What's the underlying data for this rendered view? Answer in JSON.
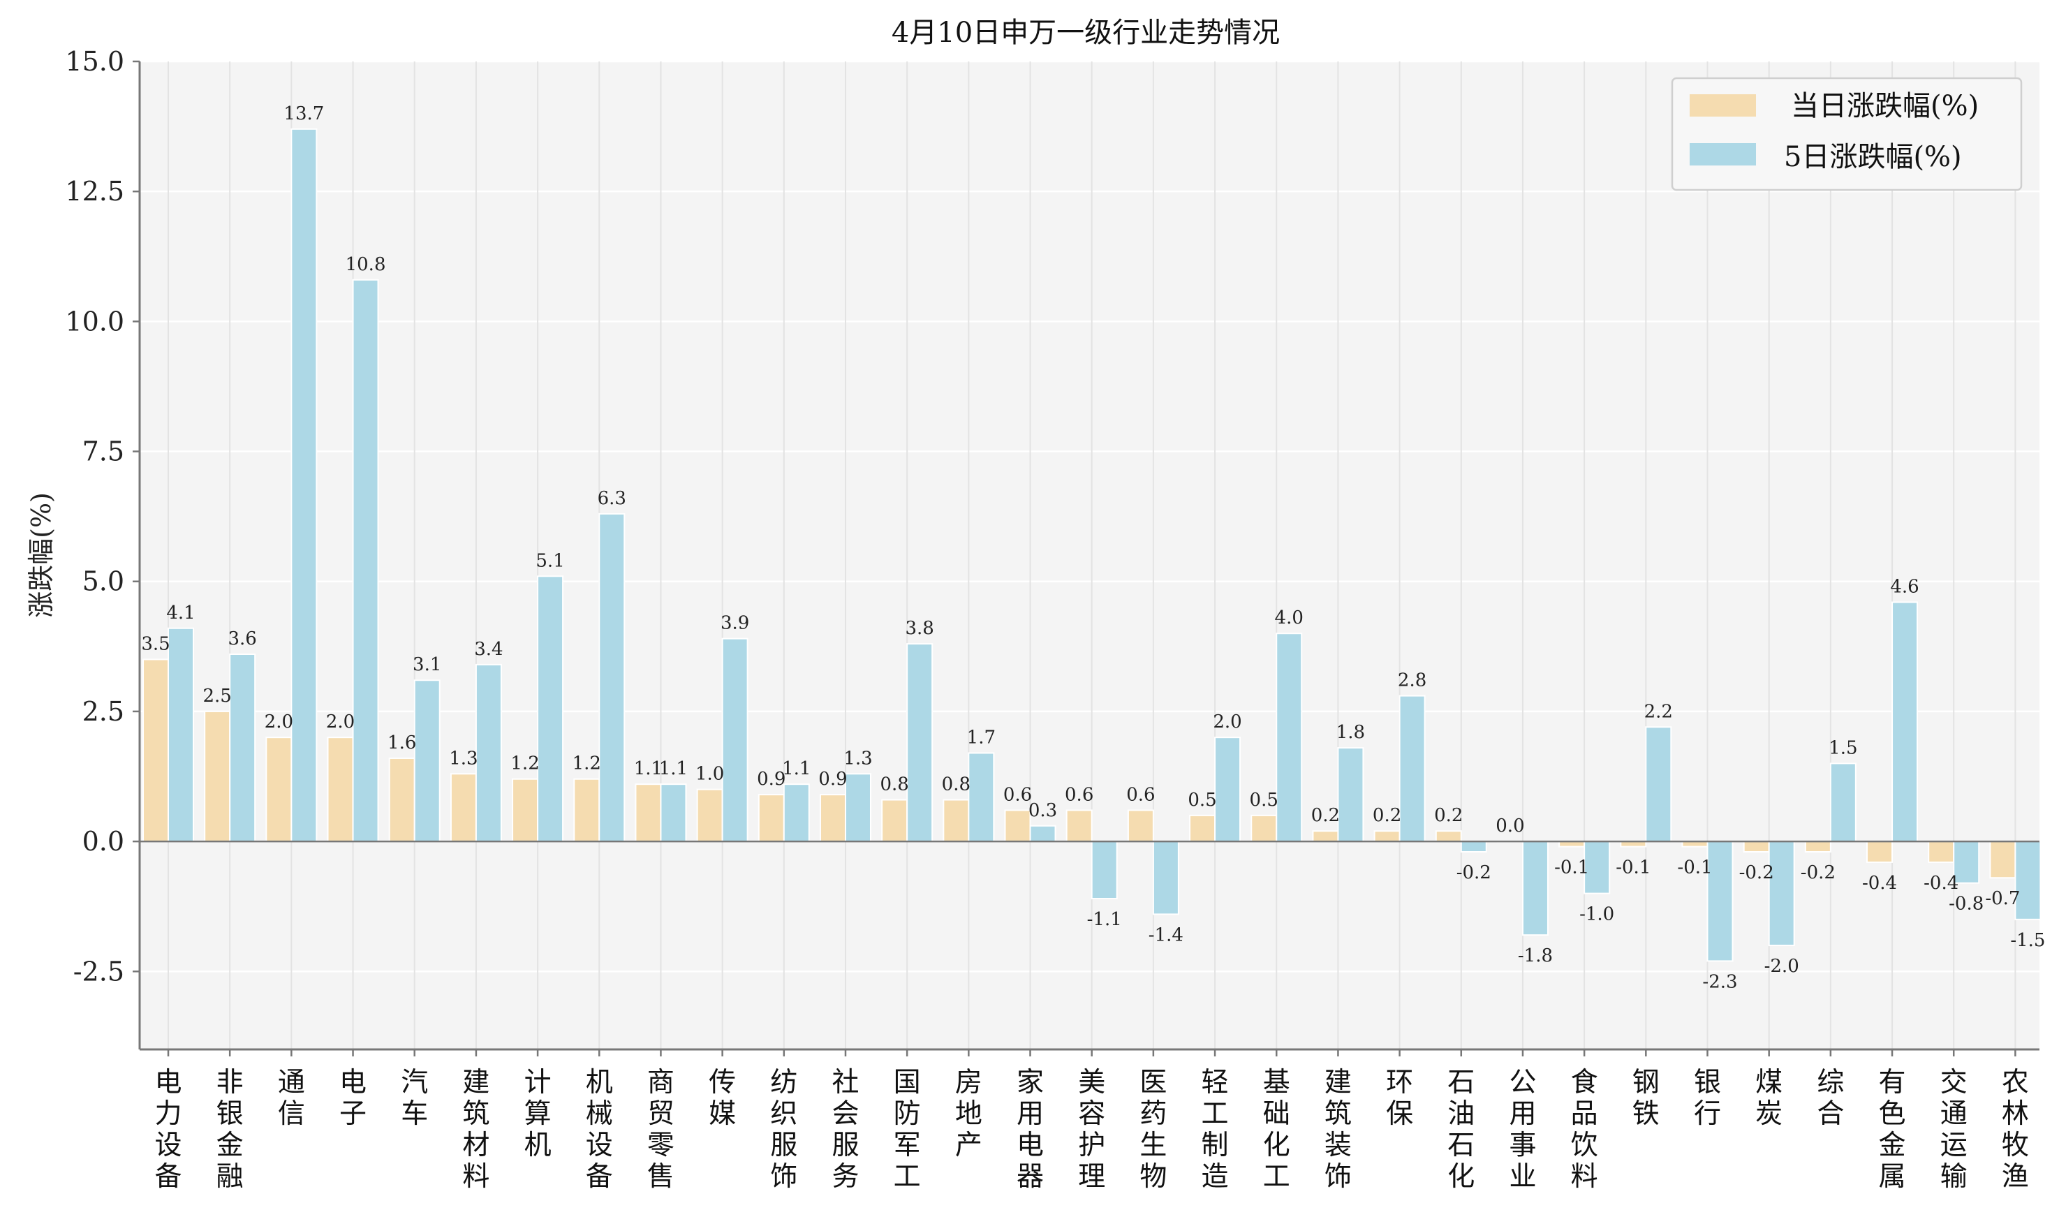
{
  "chart_data": {
    "type": "bar",
    "title": "4月10日申万一级行业走势情况",
    "xlabel": "",
    "ylabel": "涨跌幅(%)",
    "ylim": [
      -4.0,
      15.0
    ],
    "yticks": [
      15.0,
      12.5,
      10.0,
      7.5,
      5.0,
      2.5,
      0.0,
      -2.5
    ],
    "ytick_labels": [
      "15.0",
      "12.5",
      "10.0",
      "7.5",
      "5.0",
      "2.5",
      "0.0",
      "-2.5"
    ],
    "grid": true,
    "legend_position": "top-right",
    "categories": [
      "电力设备",
      "非银金融",
      "通信",
      "电子",
      "汽车",
      "建筑材料",
      "计算机",
      "机械设备",
      "商贸零售",
      "传媒",
      "纺织服饰",
      "社会服务",
      "国防军工",
      "房地产",
      "家用电器",
      "美容护理",
      "医药生物",
      "轻工制造",
      "基础化工",
      "建筑装饰",
      "环保",
      "石油石化",
      "公用事业",
      "食品饮料",
      "钢铁",
      "银行",
      "煤炭",
      "综合",
      "有色金属",
      "交通运输",
      "农林牧渔"
    ],
    "series": [
      {
        "name": "当日涨跌幅(%)",
        "color": "#f5dcb0",
        "values": [
          3.5,
          2.5,
          2.0,
          2.0,
          1.6,
          1.3,
          1.2,
          1.2,
          1.1,
          1.0,
          0.9,
          0.9,
          0.8,
          0.8,
          0.6,
          0.6,
          0.6,
          0.5,
          0.5,
          0.2,
          0.2,
          0.2,
          0.0,
          -0.1,
          -0.1,
          -0.1,
          -0.2,
          -0.2,
          -0.4,
          -0.4,
          -0.7
        ],
        "labels": [
          "3.5",
          "2.5",
          "2.0",
          "2.0",
          "1.6",
          "1.3",
          "1.2",
          "1.2",
          "1.1",
          "1.0",
          "0.9",
          "0.9",
          "0.8",
          "0.8",
          "0.6",
          "0.6",
          "0.6",
          "0.5",
          "0.5",
          "0.2",
          "0.2",
          "0.2",
          "0.0",
          "-0.1",
          "-0.1",
          "-0.1",
          "-0.2",
          "-0.2",
          "-0.4",
          "-0.4",
          "-0.7"
        ]
      },
      {
        "name": "5日涨跌幅(%)",
        "color": "#add8e6",
        "values": [
          4.1,
          3.6,
          13.7,
          10.8,
          3.1,
          3.4,
          5.1,
          6.3,
          1.1,
          3.9,
          1.1,
          1.3,
          3.8,
          1.7,
          0.3,
          -1.1,
          -1.4,
          2.0,
          4.0,
          1.8,
          2.8,
          -0.2,
          -1.8,
          -1.0,
          2.2,
          -2.3,
          -2.0,
          1.5,
          4.6,
          -0.8,
          -1.5
        ],
        "labels": [
          "4.1",
          "3.6",
          "13.7",
          "10.8",
          "3.1",
          "3.4",
          "5.1",
          "6.3",
          "1.1",
          "3.9",
          "1.1",
          "1.3",
          "3.8",
          "1.7",
          "0.3",
          "-1.1",
          "-1.4",
          "2.0",
          "4.0",
          "1.8",
          "2.8",
          "-0.2",
          "-1.8",
          "-1.0",
          "2.2",
          "-2.3",
          "-2.0",
          "1.5",
          "4.6",
          "-0.8",
          "-1.5"
        ]
      }
    ]
  }
}
